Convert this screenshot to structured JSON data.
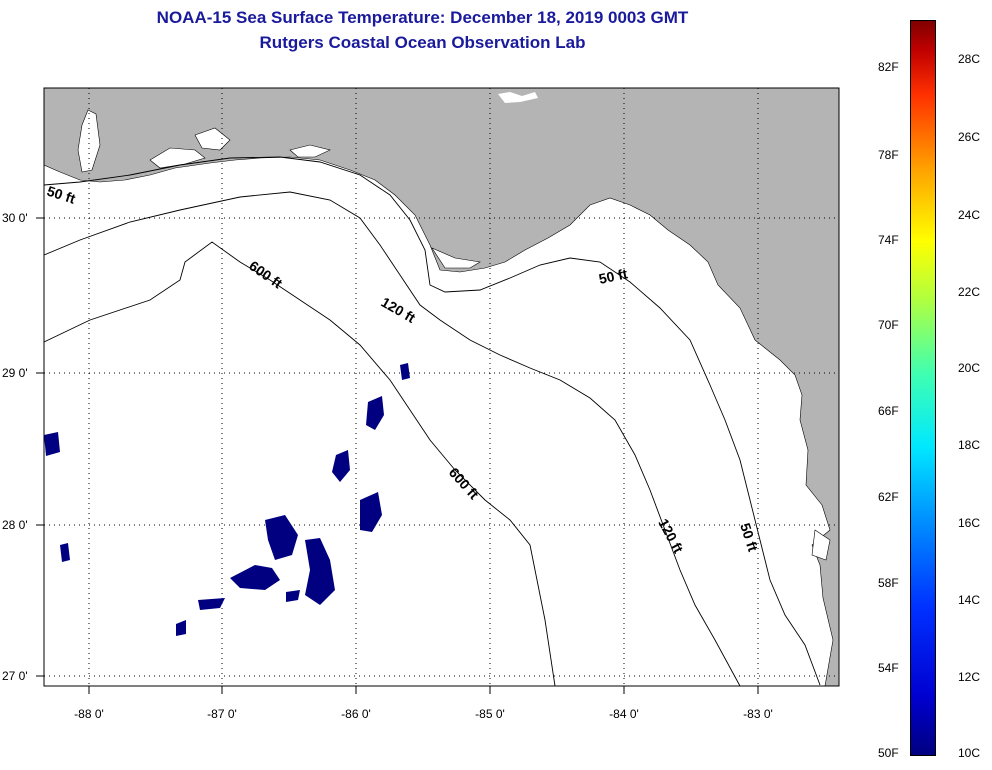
{
  "title": {
    "line1": "NOAA-15 Sea Surface Temperature:  December 18, 2019 0003 GMT",
    "line2": "Rutgers Coastal Ocean Observation Lab"
  },
  "map": {
    "lon_labels": [
      "-88 0'",
      "-87 0'",
      "-86 0'",
      "-85 0'",
      "-84 0'",
      "-83 0'"
    ],
    "lat_labels": [
      "30 0'",
      "29 0'",
      "28 0'",
      "27 0'"
    ],
    "contour_labels": [
      "50 ft",
      "600 ft",
      "120 ft",
      "50 ft",
      "600 ft",
      "120 ft",
      "50 ft"
    ],
    "land_color": "#b4b4b4",
    "cold_patch_color": "#000080"
  },
  "colorbar": {
    "fahrenheit": [
      "82F",
      "78F",
      "74F",
      "70F",
      "66F",
      "62F",
      "58F",
      "54F",
      "50F"
    ],
    "celsius": [
      "28C",
      "26C",
      "24C",
      "22C",
      "20C",
      "18C",
      "16C",
      "14C",
      "12C",
      "10C"
    ]
  }
}
